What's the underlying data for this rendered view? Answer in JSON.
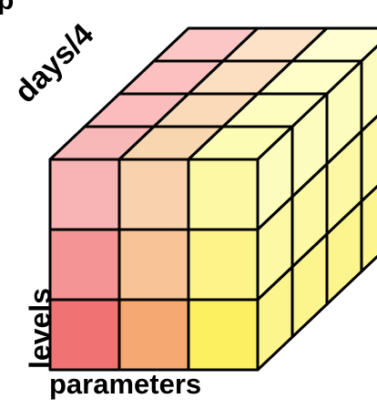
{
  "labels": {
    "days": "days/4",
    "levels": "levels",
    "parameters": "parameters"
  },
  "cube": {
    "parameters": 3,
    "levels": 3,
    "days": 4,
    "colors": {
      "front": [
        [
          "#f8b4b4",
          "#f8d2ac",
          "#fcf8a4"
        ],
        [
          "#f59494",
          "#f8c496",
          "#fcf488"
        ],
        [
          "#f07272",
          "#f5a870",
          "#fcf060"
        ]
      ],
      "top_rows": [
        [
          "#f8b8b8",
          "#f8d6b0",
          "#fcfcb4"
        ],
        [
          "#fabcbc",
          "#fadab8",
          "#fdfdc0"
        ],
        [
          "#fcc0c0",
          "#fcdec0",
          "#fefec8"
        ],
        [
          "#fdc6c6",
          "#fde2c8",
          "#fefed0"
        ]
      ],
      "side": [
        "#fcfcbc",
        "#fcf8a4",
        "#fcf48c"
      ]
    }
  }
}
